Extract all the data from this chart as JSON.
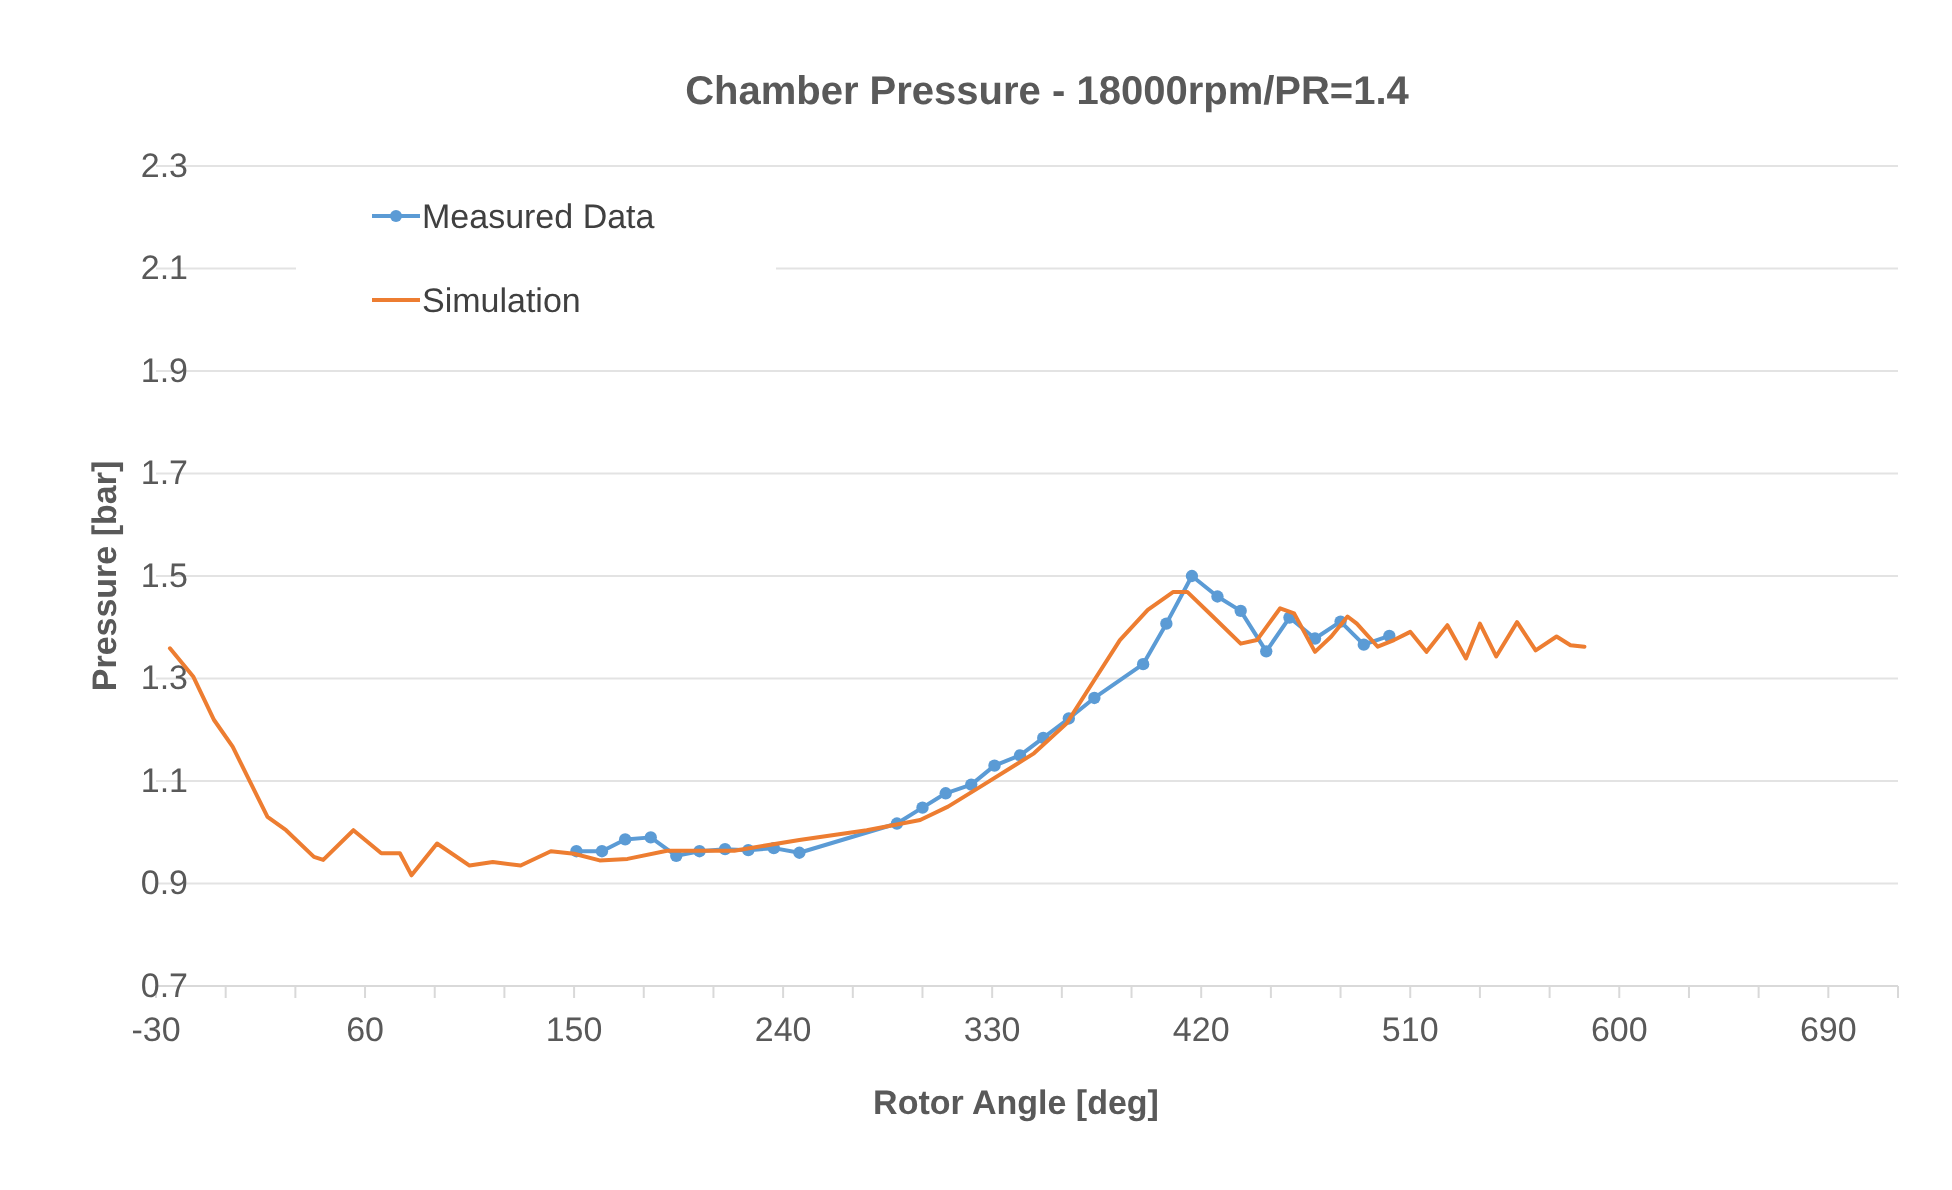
{
  "chart_data": {
    "type": "line",
    "title": "Chamber Pressure - 18000rpm/PR=1.4",
    "xlabel": "Rotor Angle [deg]",
    "ylabel": "Pressure [bar]",
    "xlim": [
      -30,
      720
    ],
    "ylim": [
      0.7,
      2.3
    ],
    "xticks": [
      -30,
      {
        "value": 0,
        "label": null
      },
      {
        "value": 30,
        "label": null
      },
      60,
      {
        "value": 90,
        "label": null
      },
      {
        "value": 120,
        "label": null
      },
      150,
      {
        "value": 180,
        "label": null
      },
      {
        "value": 210,
        "label": null
      },
      240,
      {
        "value": 270,
        "label": null
      },
      {
        "value": 300,
        "label": null
      },
      330,
      {
        "value": 360,
        "label": null
      },
      {
        "value": 390,
        "label": null
      },
      420,
      {
        "value": 450,
        "label": null
      },
      {
        "value": 480,
        "label": null
      },
      510,
      {
        "value": 540,
        "label": null
      },
      {
        "value": 570,
        "label": null
      },
      600,
      {
        "value": 630,
        "label": null
      },
      {
        "value": 660,
        "label": null
      },
      690,
      {
        "value": 720,
        "label": null
      }
    ],
    "yticks": [
      0.7,
      0.9,
      1.1,
      1.3,
      1.5,
      1.7,
      1.9,
      2.1,
      2.3
    ],
    "grid": "y",
    "legend": "top left",
    "series": [
      {
        "name": "Measured Data",
        "color": "#5b9bd5",
        "marker": "circle",
        "x": [
          151,
          162,
          172,
          183,
          194,
          204,
          215,
          225,
          236,
          247,
          289,
          300,
          310,
          321,
          331,
          342,
          352,
          363,
          374,
          395,
          405,
          416,
          427,
          437,
          448,
          458,
          469,
          480,
          490,
          501
        ],
        "values": [
          0.963,
          0.963,
          0.986,
          0.99,
          0.954,
          0.963,
          0.967,
          0.965,
          0.969,
          0.96,
          1.017,
          1.048,
          1.076,
          1.093,
          1.13,
          1.15,
          1.184,
          1.222,
          1.262,
          1.328,
          1.407,
          1.5,
          1.46,
          1.432,
          1.353,
          1.419,
          1.378,
          1.411,
          1.366,
          1.383
        ]
      },
      {
        "name": "Simulation",
        "color": "#ed7d31",
        "marker": "none",
        "x": [
          -24,
          -14,
          -5,
          3,
          18,
          26,
          38,
          42,
          55,
          67,
          75,
          80,
          91,
          105,
          115,
          127,
          140,
          150,
          161,
          173,
          190,
          219,
          247,
          276,
          299,
          311,
          325,
          348,
          362,
          374,
          385,
          397,
          408,
          414,
          425,
          437,
          444,
          454,
          460,
          469,
          476,
          483,
          487,
          496,
          503,
          510,
          517,
          526,
          534,
          540,
          547,
          556,
          564,
          573,
          579,
          585
        ],
        "values": [
          1.359,
          1.304,
          1.219,
          1.167,
          1.03,
          1.004,
          0.952,
          0.946,
          1.004,
          0.959,
          0.959,
          0.916,
          0.978,
          0.935,
          0.942,
          0.935,
          0.963,
          0.958,
          0.945,
          0.948,
          0.964,
          0.964,
          0.985,
          1.004,
          1.024,
          1.05,
          1.089,
          1.154,
          1.212,
          1.297,
          1.375,
          1.434,
          1.469,
          1.469,
          1.421,
          1.368,
          1.375,
          1.437,
          1.427,
          1.352,
          1.382,
          1.421,
          1.407,
          1.362,
          1.375,
          1.391,
          1.352,
          1.404,
          1.339,
          1.407,
          1.343,
          1.41,
          1.355,
          1.382,
          1.365,
          1.362
        ]
      }
    ]
  }
}
